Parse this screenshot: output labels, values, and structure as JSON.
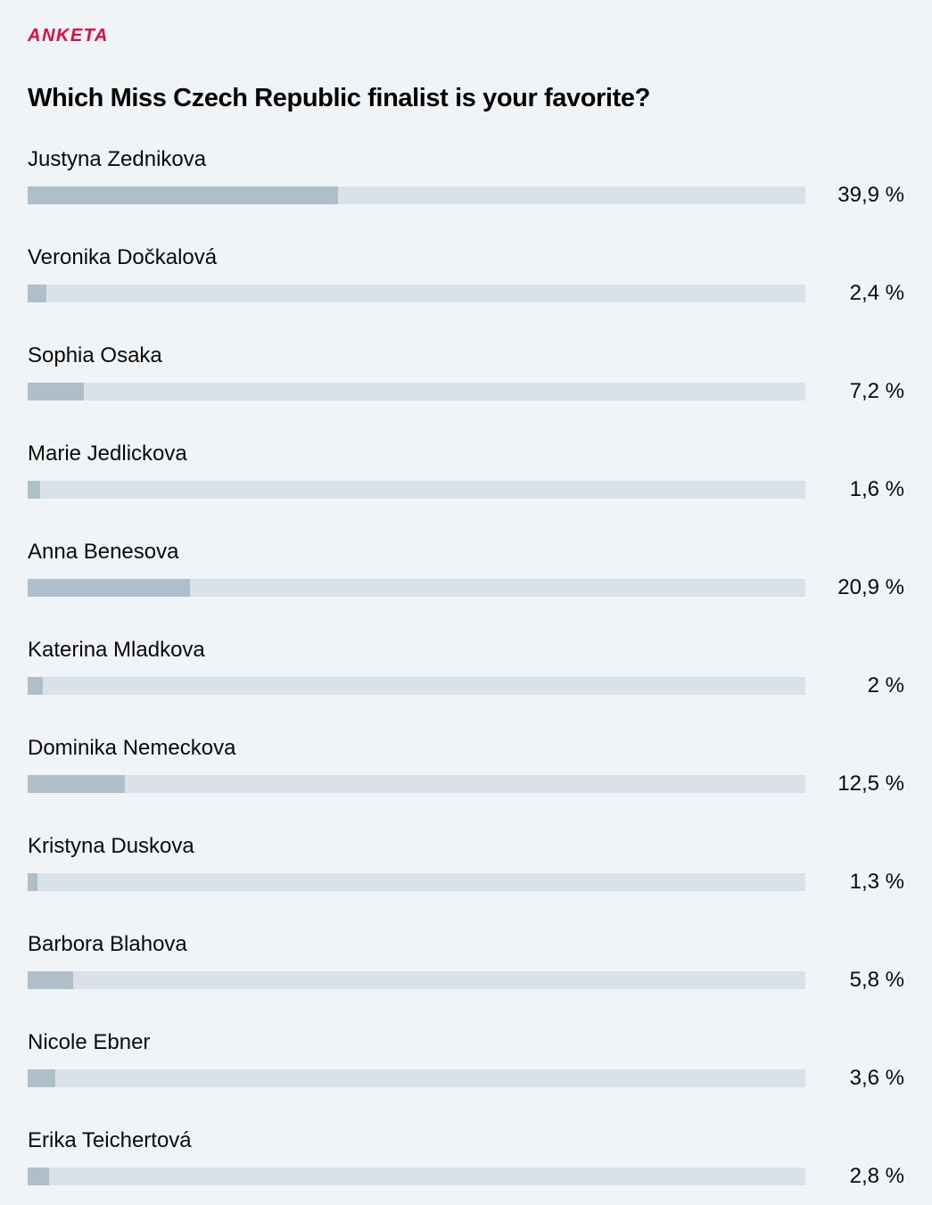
{
  "header": {
    "kicker": "ANKETA",
    "title": "Which Miss Czech Republic finalist is your favorite?"
  },
  "colors": {
    "background": "#f0f4f7",
    "kicker_red": "#e30b3d",
    "bar_track": "#d9e2e8",
    "bar_fill": "#aebfc9",
    "text": "#0a0a0a"
  },
  "poll": {
    "options": [
      {
        "name": "Justyna Zednikova",
        "percent": 39.9,
        "label": "39,9 %"
      },
      {
        "name": "Veronika Dočkalová",
        "percent": 2.4,
        "label": "2,4 %"
      },
      {
        "name": "Sophia Osaka",
        "percent": 7.2,
        "label": "7,2 %"
      },
      {
        "name": "Marie Jedlickova",
        "percent": 1.6,
        "label": "1,6 %"
      },
      {
        "name": "Anna Benesova",
        "percent": 20.9,
        "label": "20,9 %"
      },
      {
        "name": "Katerina Mladkova",
        "percent": 2,
        "label": "2 %"
      },
      {
        "name": "Dominika Nemeckova",
        "percent": 12.5,
        "label": "12,5 %"
      },
      {
        "name": "Kristyna Duskova",
        "percent": 1.3,
        "label": "1,3 %"
      },
      {
        "name": "Barbora Blahova",
        "percent": 5.8,
        "label": "5,8 %"
      },
      {
        "name": "Nicole Ebner",
        "percent": 3.6,
        "label": "3,6 %"
      },
      {
        "name": "Erika Teichertová",
        "percent": 2.8,
        "label": "2,8 %"
      }
    ]
  },
  "chart_data": {
    "type": "bar",
    "orientation": "horizontal",
    "title": "Which Miss Czech Republic finalist is your favorite?",
    "categories": [
      "Justyna Zednikova",
      "Veronika Dočkalová",
      "Sophia Osaka",
      "Marie Jedlickova",
      "Anna Benesova",
      "Katerina Mladkova",
      "Dominika Nemeckova",
      "Kristyna Duskova",
      "Barbora Blahova",
      "Nicole Ebner",
      "Erika Teichertová"
    ],
    "values": [
      39.9,
      2.4,
      7.2,
      1.6,
      20.9,
      2,
      12.5,
      1.3,
      5.8,
      3.6,
      2.8
    ],
    "value_labels": [
      "39,9 %",
      "2,4 %",
      "7,2 %",
      "1,6 %",
      "20,9 %",
      "2 %",
      "12,5 %",
      "1,3 %",
      "5,8 %",
      "3,6 %",
      "2,8 %"
    ],
    "xlabel": "",
    "ylabel": "",
    "xlim": [
      0,
      100
    ],
    "grid": false,
    "legend": false,
    "decimal_separator": ","
  }
}
